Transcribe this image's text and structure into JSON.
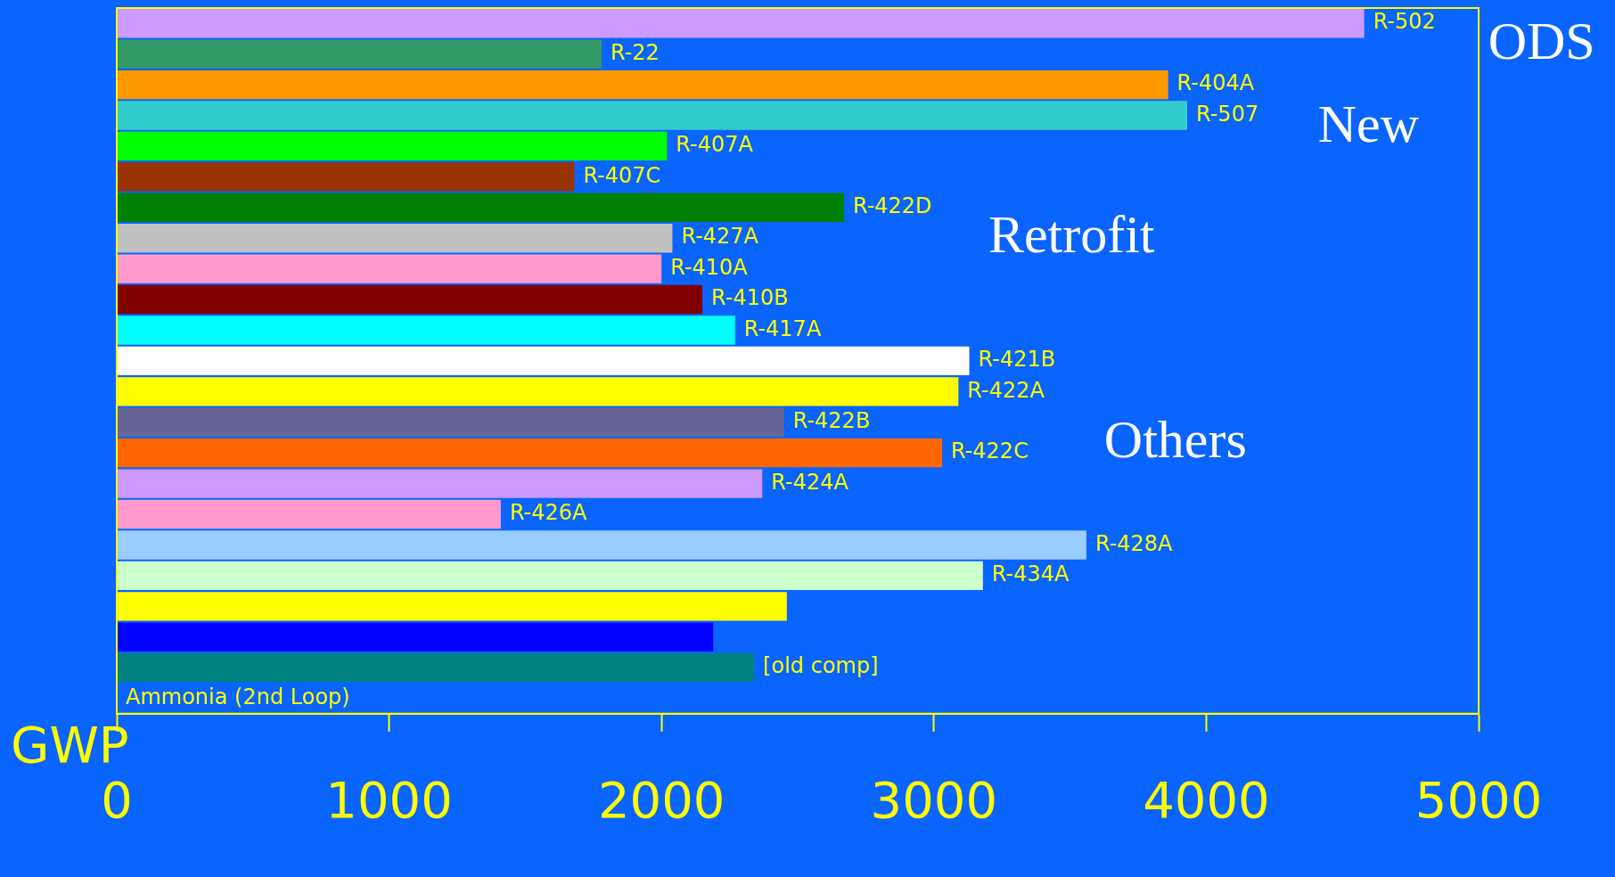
{
  "chart_data": {
    "type": "bar",
    "orientation": "horizontal",
    "xlabel": "GWP",
    "categories": [
      "R-502",
      "R-22",
      "R-404A",
      "R-507",
      "R-407A",
      "R-407C",
      "R-422D",
      "R-427A",
      "R-410A",
      "R-410B",
      "R-417A",
      "R-421B",
      "R-422A",
      "R-422B",
      "R-422C",
      "R-424A",
      "R-426A",
      "R-428A",
      "R-434A",
      null,
      null,
      "[old comp]",
      "Ammonia (2nd Loop)"
    ],
    "values": [
      4580,
      1780,
      3860,
      3930,
      2020,
      1680,
      2670,
      2040,
      2000,
      2150,
      2270,
      3130,
      3090,
      2450,
      3030,
      2370,
      1410,
      3560,
      3180,
      2460,
      2190,
      2340,
      0
    ],
    "colors": [
      "#cc99ff",
      "#339966",
      "#ff9900",
      "#33cccc",
      "#00ff00",
      "#993300",
      "#008000",
      "#c0c0c0",
      "#ff99cc",
      "#800000",
      "#00ffff",
      "#ffffff",
      "#ffff00",
      "#666699",
      "#ff6600",
      "#cc99ff",
      "#ff99cc",
      "#99ccff",
      "#ccffcc",
      "#ffff00",
      "#0000ff",
      "#008080",
      "#0066ff"
    ],
    "xlim": [
      0,
      5000
    ],
    "xticks": [
      0,
      1000,
      2000,
      3000,
      4000,
      5000
    ],
    "grid": false,
    "legend": false,
    "annotations": [
      "ODS",
      "New",
      "Retrofit",
      "Others"
    ]
  }
}
